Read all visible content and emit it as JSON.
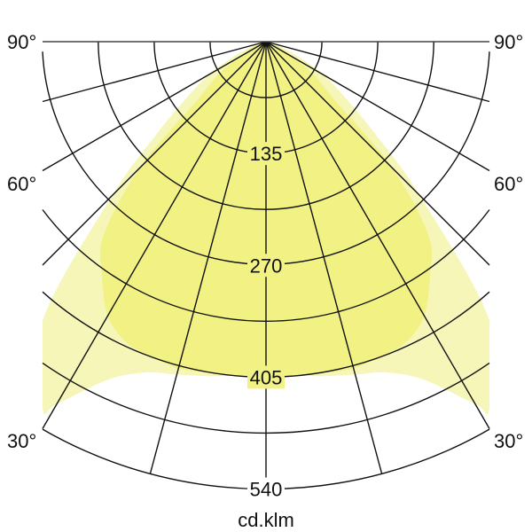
{
  "chart_data": {
    "type": "polar",
    "unit_label": "cd.klm",
    "radial_range": [
      0,
      540
    ],
    "radial_grid_step": 67.5,
    "radial_tick_labels": [
      "135",
      "270",
      "405",
      "540"
    ],
    "radial_tick_values": [
      135,
      270,
      405,
      540
    ],
    "angle_grid_step_deg": 15,
    "angle_labels": [
      "90°",
      "60°",
      "30°"
    ],
    "angle_label_values": [
      90,
      60,
      30
    ],
    "grid": true,
    "series": [
      {
        "color": "#f6f6b8",
        "angles_deg": [
          0,
          5,
          10,
          15,
          20,
          25,
          30,
          35,
          40,
          45,
          50,
          55,
          60,
          65,
          70,
          75,
          90
        ],
        "values": [
          403,
          405,
          410,
          416,
          425,
          450,
          505,
          540,
          440,
          262,
          170,
          115,
          80,
          45,
          20,
          5,
          0
        ]
      },
      {
        "color": "#f1f184",
        "angles_deg": [
          0,
          5,
          10,
          15,
          20,
          25,
          30,
          35,
          40,
          45,
          50,
          55,
          60,
          65,
          70,
          90
        ],
        "values": [
          405,
          405,
          406,
          408,
          405,
          400,
          382,
          345,
          305,
          215,
          105,
          72,
          42,
          18,
          5,
          0
        ]
      }
    ]
  }
}
